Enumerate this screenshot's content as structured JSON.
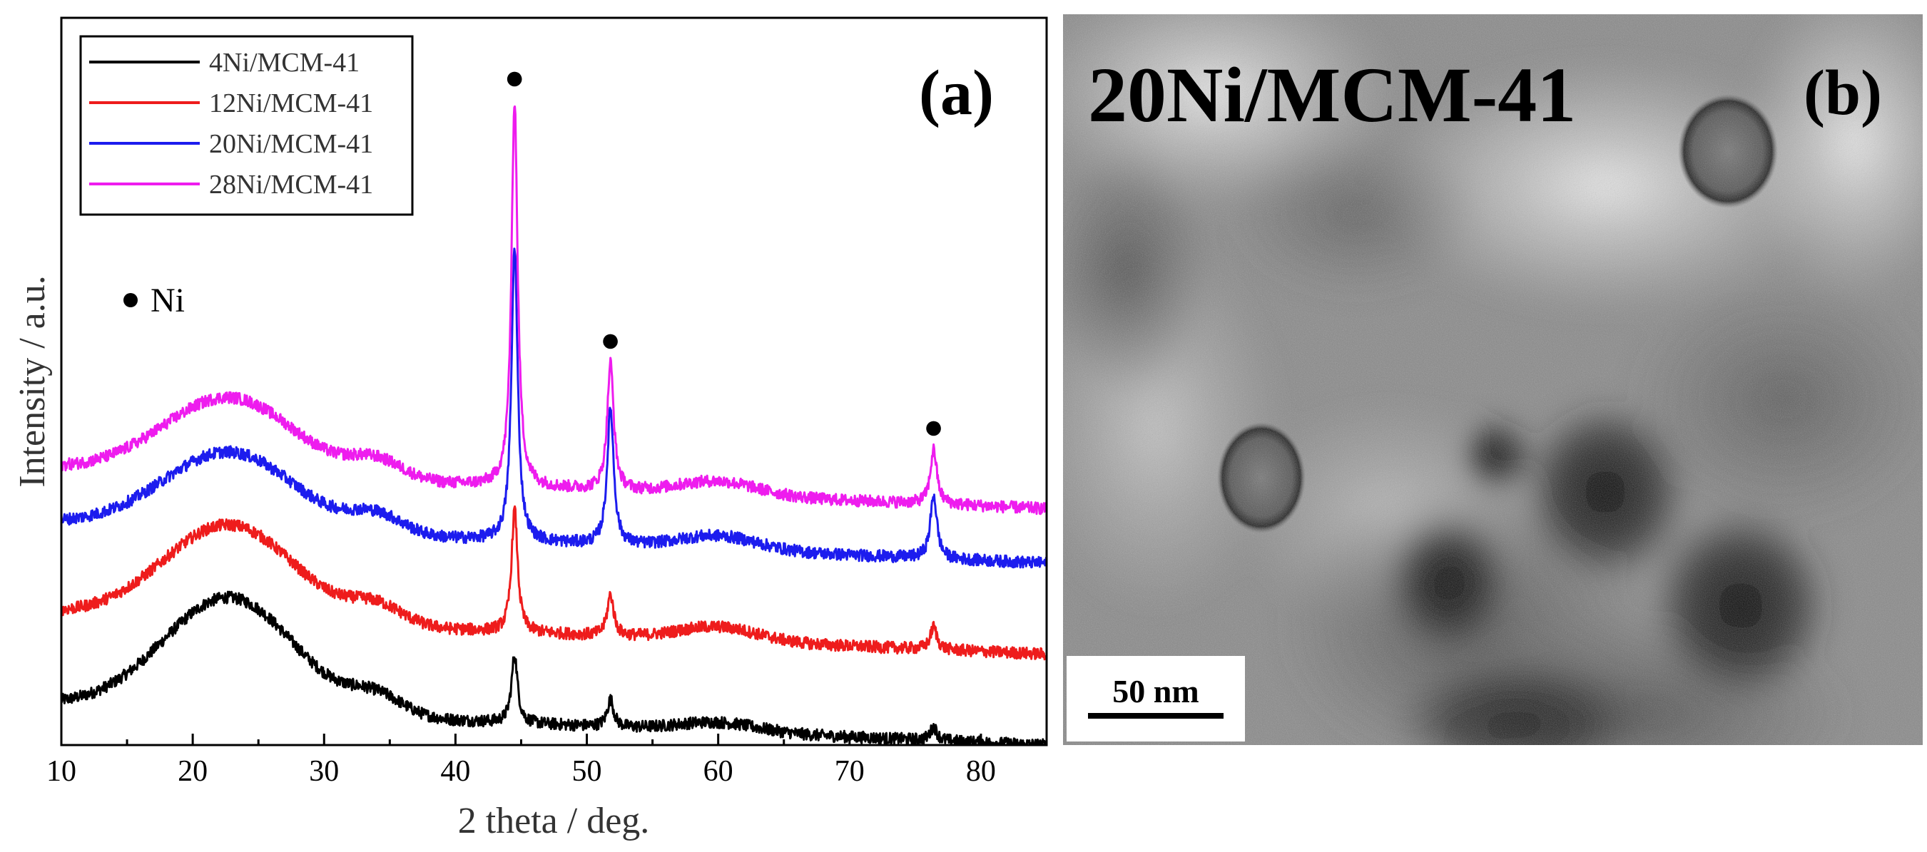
{
  "chart_data": {
    "type": "line",
    "panel_label": "(a)",
    "xlabel": "2 theta / deg.",
    "ylabel": "Intensity / a.u.",
    "xlim": [
      10,
      85
    ],
    "xticks": [
      10,
      20,
      30,
      40,
      50,
      60,
      70,
      80
    ],
    "x_tick_labels": [
      "10",
      "20",
      "30",
      "40",
      "50",
      "60",
      "70",
      "80"
    ],
    "y_ticks_shown": false,
    "marker_legend": {
      "symbol": "●",
      "label": "Ni"
    },
    "peak_markers": [
      {
        "x": 44.5,
        "label": "●"
      },
      {
        "x": 51.8,
        "label": "●"
      },
      {
        "x": 76.4,
        "label": "●"
      }
    ],
    "series": [
      {
        "name": "4Ni/MCM-41",
        "color": "#000000",
        "offset": 0,
        "baseline": [
          [
            10,
            9
          ],
          [
            85,
            0
          ]
        ],
        "features": [
          {
            "type": "hump",
            "center": 22.8,
            "height": 25,
            "width": 5
          },
          {
            "type": "hump",
            "center": 34,
            "height": 4,
            "width": 2
          },
          {
            "type": "hump",
            "center": 60,
            "height": 2,
            "width": 3
          },
          {
            "type": "peak",
            "center": 44.5,
            "height": 15,
            "width": 0.28
          },
          {
            "type": "peak",
            "center": 51.8,
            "height": 6,
            "width": 0.3
          },
          {
            "type": "peak",
            "center": 76.4,
            "height": 3,
            "width": 0.3
          }
        ]
      },
      {
        "name": "12Ni/MCM-41",
        "color": "#ee1c1c",
        "offset": 20,
        "baseline": [
          [
            10,
            9
          ],
          [
            85,
            0
          ]
        ],
        "features": [
          {
            "type": "hump",
            "center": 22.8,
            "height": 21,
            "width": 5
          },
          {
            "type": "hump",
            "center": 34,
            "height": 4,
            "width": 2
          },
          {
            "type": "hump",
            "center": 60,
            "height": 3,
            "width": 3
          },
          {
            "type": "peak",
            "center": 44.5,
            "height": 27,
            "width": 0.28
          },
          {
            "type": "peak",
            "center": 51.8,
            "height": 9,
            "width": 0.3
          },
          {
            "type": "peak",
            "center": 76.4,
            "height": 5,
            "width": 0.3
          }
        ]
      },
      {
        "name": "20Ni/MCM-41",
        "color": "#1c1cee",
        "offset": 40,
        "baseline": [
          [
            10,
            9
          ],
          [
            85,
            0
          ]
        ],
        "features": [
          {
            "type": "hump",
            "center": 22.8,
            "height": 17,
            "width": 5
          },
          {
            "type": "hump",
            "center": 34,
            "height": 4,
            "width": 2
          },
          {
            "type": "hump",
            "center": 60,
            "height": 3,
            "width": 3
          },
          {
            "type": "peak",
            "center": 44.5,
            "height": 65,
            "width": 0.28
          },
          {
            "type": "peak",
            "center": 51.8,
            "height": 30,
            "width": 0.3
          },
          {
            "type": "peak",
            "center": 76.4,
            "height": 14,
            "width": 0.3
          }
        ]
      },
      {
        "name": "28Ni/MCM-41",
        "color": "#ee1cee",
        "offset": 52,
        "baseline": [
          [
            10,
            9
          ],
          [
            85,
            0
          ]
        ],
        "features": [
          {
            "type": "hump",
            "center": 22.8,
            "height": 17,
            "width": 5
          },
          {
            "type": "hump",
            "center": 34,
            "height": 4,
            "width": 2
          },
          {
            "type": "hump",
            "center": 60,
            "height": 3,
            "width": 3
          },
          {
            "type": "peak",
            "center": 44.5,
            "height": 85,
            "width": 0.28
          },
          {
            "type": "peak",
            "center": 51.8,
            "height": 28,
            "width": 0.3
          },
          {
            "type": "peak",
            "center": 76.4,
            "height": 12,
            "width": 0.3
          }
        ]
      }
    ],
    "ylim": [
      0,
      160
    ]
  },
  "tem_panel": {
    "panel_label": "(b)",
    "title": "20Ni/MCM-41",
    "scale_bar_label": "50 nm"
  }
}
